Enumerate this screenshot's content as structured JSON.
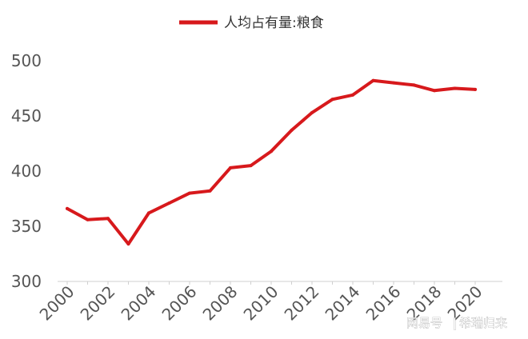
{
  "chart_data": {
    "type": "line",
    "title": "",
    "xlabel": "",
    "ylabel": "",
    "legend_position": "top-center",
    "grid": false,
    "ylim": [
      300,
      500
    ],
    "yticks": [
      300,
      350,
      400,
      450,
      500
    ],
    "xticks": [
      "2000",
      "2002",
      "2004",
      "2006",
      "2008",
      "2010",
      "2012",
      "2014",
      "2016",
      "2018",
      "2020"
    ],
    "x": [
      2000,
      2001,
      2002,
      2003,
      2004,
      2005,
      2006,
      2007,
      2008,
      2009,
      2010,
      2011,
      2012,
      2013,
      2014,
      2015,
      2016,
      2017,
      2018,
      2019,
      2020
    ],
    "series": [
      {
        "name": "人均占有量:粮食",
        "color": "#d7191c",
        "values": [
          366,
          356,
          357,
          334,
          362,
          371,
          380,
          382,
          403,
          405,
          418,
          437,
          453,
          465,
          469,
          482,
          480,
          478,
          473,
          475,
          474
        ]
      }
    ]
  },
  "watermark": {
    "left": "网易号",
    "right": "希瑞归来"
  }
}
